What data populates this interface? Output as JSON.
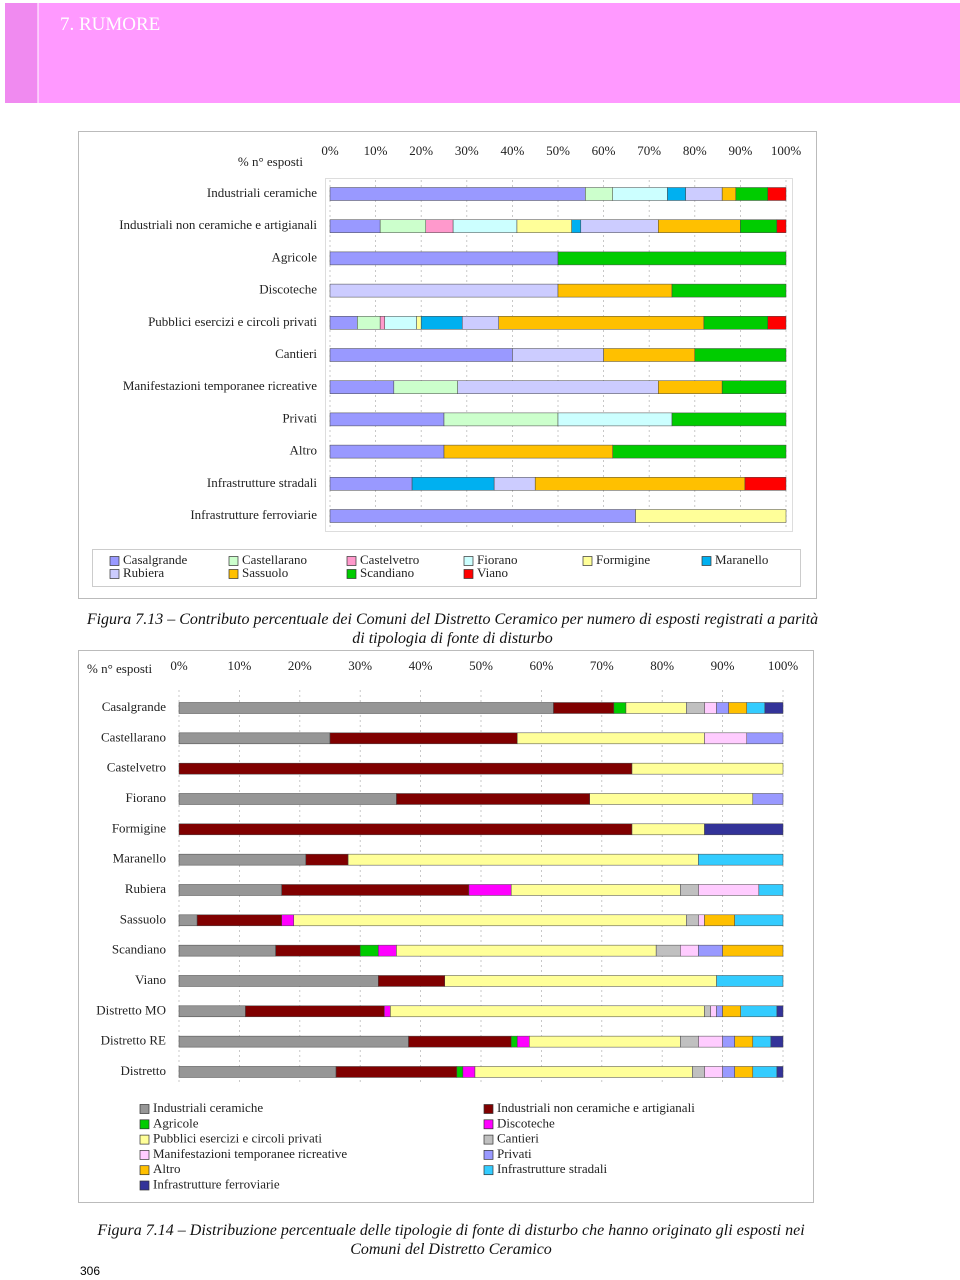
{
  "header": {
    "title": "7. RUMORE"
  },
  "page_number": "306",
  "chart_data": [
    {
      "type": "bar",
      "orientation": "horizontal",
      "stacked": true,
      "axis_title": "% n° esposti",
      "caption": "Figura 7.13 – Contributo percentuale dei Comuni del Distretto Ceramico per numero di esposti registrati a parità di tipologia di fonte di disturbo",
      "categories": [
        "Industriali ceramiche",
        "Industriali non ceramiche e artigianali",
        "Agricole",
        "Discoteche",
        "Pubblici esercizi e circoli privati",
        "Cantieri",
        "Manifestazioni temporanee ricreative",
        "Privati",
        "Altro",
        "Infrastrutture stradali",
        "Infrastrutture ferroviarie"
      ],
      "xlim": [
        0,
        100
      ],
      "xticks": [
        {
          "value": 0,
          "label": "0%"
        },
        {
          "value": 10,
          "label": "10%"
        },
        {
          "value": 20,
          "label": "20%"
        },
        {
          "value": 30,
          "label": "30%"
        },
        {
          "value": 40,
          "label": "40%"
        },
        {
          "value": 50,
          "label": "50%"
        },
        {
          "value": 60,
          "label": "60%"
        },
        {
          "value": 70,
          "label": "70%"
        },
        {
          "value": 80,
          "label": "80%"
        },
        {
          "value": 90,
          "label": "90%"
        },
        {
          "value": 100,
          "label": "100%"
        }
      ],
      "grid": true,
      "series": [
        {
          "name": "Casalgrande",
          "color": "#9999ff",
          "values": [
            56,
            11,
            50,
            0,
            6,
            40,
            14,
            25,
            25,
            18,
            67
          ]
        },
        {
          "name": "Castellarano",
          "color": "#ccffcc",
          "values": [
            6,
            10,
            0,
            0,
            5,
            0,
            14,
            25,
            0,
            0,
            0
          ]
        },
        {
          "name": "Castelvetro",
          "color": "#ff99cc",
          "values": [
            0,
            6,
            0,
            0,
            1,
            0,
            0,
            0,
            0,
            0,
            0
          ]
        },
        {
          "name": "Fiorano",
          "color": "#ccffff",
          "values": [
            12,
            14,
            0,
            0,
            7,
            0,
            0,
            25,
            0,
            0,
            0
          ]
        },
        {
          "name": "Formigine",
          "color": "#ffff99",
          "values": [
            0,
            12,
            0,
            0,
            1,
            0,
            0,
            0,
            0,
            0,
            33
          ]
        },
        {
          "name": "Maranello",
          "color": "#00b0f0",
          "values": [
            4,
            2,
            0,
            0,
            9,
            0,
            0,
            0,
            0,
            18,
            0
          ]
        },
        {
          "name": "Rubiera",
          "color": "#ccccff",
          "values": [
            8,
            17,
            0,
            50,
            8,
            20,
            44,
            0,
            0,
            9,
            0
          ]
        },
        {
          "name": "Sassuolo",
          "color": "#ffc000",
          "values": [
            3,
            18,
            0,
            25,
            45,
            20,
            14,
            0,
            37,
            46,
            0
          ]
        },
        {
          "name": "Scandiano",
          "color": "#00cc00",
          "values": [
            7,
            8,
            50,
            25,
            14,
            20,
            14,
            25,
            38,
            0,
            0
          ]
        },
        {
          "name": "Viano",
          "color": "#ff0000",
          "values": [
            4,
            2,
            0,
            0,
            4,
            0,
            0,
            0,
            0,
            9,
            0
          ]
        }
      ]
    },
    {
      "type": "bar",
      "orientation": "horizontal",
      "stacked": true,
      "axis_title": "% n° esposti",
      "caption": "Figura 7.14 – Distribuzione percentuale delle tipologie di fonte di disturbo che hanno originato gli esposti nei Comuni del Distretto Ceramico",
      "categories": [
        "Casalgrande",
        "Castellarano",
        "Castelvetro",
        "Fiorano",
        "Formigine",
        "Maranello",
        "Rubiera",
        "Sassuolo",
        "Scandiano",
        "Viano",
        "Distretto MO",
        "Distretto RE",
        "Distretto"
      ],
      "xlim": [
        0,
        100
      ],
      "xticks": [
        {
          "value": 0,
          "label": "0%"
        },
        {
          "value": 10,
          "label": "10%"
        },
        {
          "value": 20,
          "label": "20%"
        },
        {
          "value": 30,
          "label": "30%"
        },
        {
          "value": 40,
          "label": "40%"
        },
        {
          "value": 50,
          "label": "50%"
        },
        {
          "value": 60,
          "label": "60%"
        },
        {
          "value": 70,
          "label": "70%"
        },
        {
          "value": 80,
          "label": "80%"
        },
        {
          "value": 90,
          "label": "90%"
        },
        {
          "value": 100,
          "label": "100%"
        }
      ],
      "grid": true,
      "series": [
        {
          "name": "Industriali ceramiche",
          "color": "#969696",
          "values": [
            62,
            25,
            0,
            36,
            0,
            21,
            17,
            3,
            16,
            33,
            11,
            38,
            26
          ]
        },
        {
          "name": "Industriali non ceramiche e artigianali",
          "color": "#800000",
          "values": [
            10,
            31,
            75,
            32,
            75,
            7,
            31,
            14,
            14,
            11,
            23,
            17,
            20
          ]
        },
        {
          "name": "Agricole",
          "color": "#00cc00",
          "values": [
            2,
            0,
            0,
            0,
            0,
            0,
            0,
            0,
            3,
            0,
            0,
            1,
            1
          ]
        },
        {
          "name": "Discoteche",
          "color": "#ff00ff",
          "values": [
            0,
            0,
            0,
            0,
            0,
            0,
            7,
            2,
            3,
            0,
            1,
            2,
            2
          ]
        },
        {
          "name": "Pubblici esercizi e circoli privati",
          "color": "#ffff99",
          "values": [
            10,
            31,
            25,
            27,
            12,
            58,
            28,
            65,
            43,
            45,
            52,
            25,
            36
          ]
        },
        {
          "name": "Cantieri",
          "color": "#c0c0c0",
          "values": [
            3,
            0,
            0,
            0,
            0,
            0,
            3,
            2,
            4,
            0,
            1,
            3,
            2
          ]
        },
        {
          "name": "Manifestazioni temporanee ricreative",
          "color": "#ffccff",
          "values": [
            2,
            7,
            0,
            0,
            0,
            0,
            10,
            1,
            3,
            0,
            1,
            4,
            3
          ]
        },
        {
          "name": "Privati",
          "color": "#9999ff",
          "values": [
            2,
            6,
            0,
            5,
            0,
            0,
            0,
            0,
            4,
            0,
            1,
            2,
            2
          ]
        },
        {
          "name": "Altro",
          "color": "#ffc000",
          "values": [
            3,
            0,
            0,
            0,
            0,
            0,
            0,
            5,
            10,
            0,
            3,
            3,
            3
          ]
        },
        {
          "name": "Infrastrutture stradali",
          "color": "#33ccff",
          "values": [
            3,
            0,
            0,
            0,
            0,
            14,
            4,
            8,
            0,
            11,
            6,
            3,
            4
          ]
        },
        {
          "name": "Infrastrutture ferroviarie",
          "color": "#333399",
          "values": [
            3,
            0,
            0,
            0,
            13,
            0,
            0,
            0,
            0,
            0,
            1,
            2,
            1
          ]
        }
      ]
    }
  ]
}
